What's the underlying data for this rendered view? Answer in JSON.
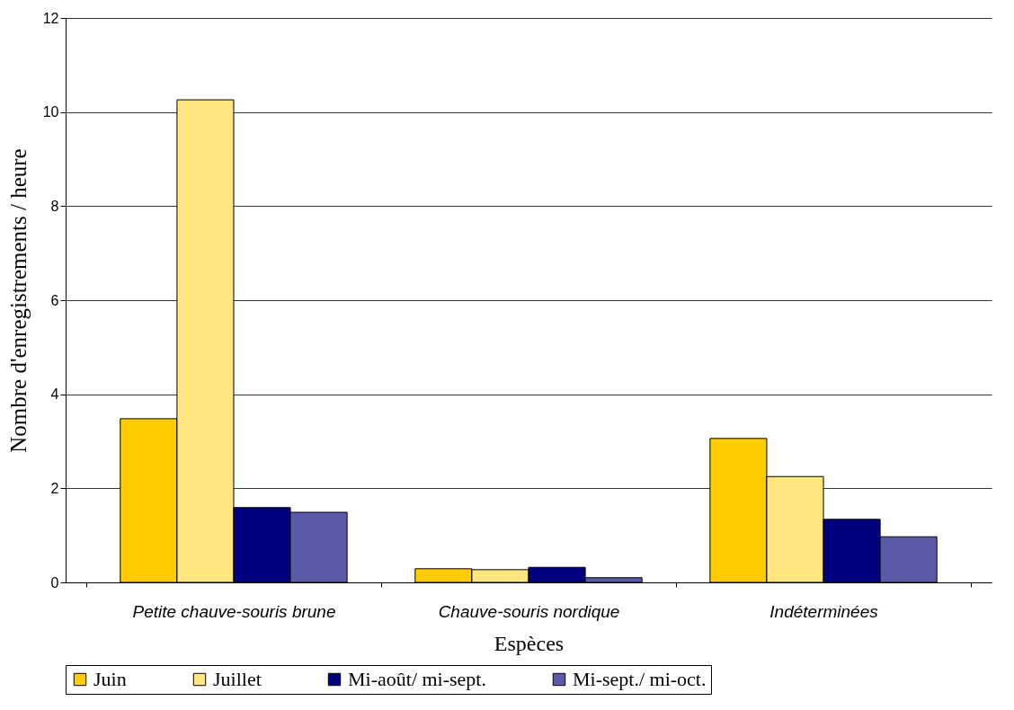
{
  "chart_data": {
    "type": "bar",
    "xlabel": "Espèces",
    "ylabel": "Nombre d'enregistrements / heure",
    "categories": [
      "Petite chauve-souris brune",
      "Chauve-souris nordique",
      "Indéterminées"
    ],
    "series": [
      {
        "name": "Juin",
        "color": "#ffcc00",
        "values": [
          3.48,
          0.29,
          3.06
        ]
      },
      {
        "name": "Juillet",
        "color": "#ffe680",
        "values": [
          10.26,
          0.27,
          2.25
        ]
      },
      {
        "name": "Mi-août/ mi-sept.",
        "color": "#000080",
        "values": [
          1.59,
          0.32,
          1.34
        ]
      },
      {
        "name": "Mi-sept./ mi-oct.",
        "color": "#5a5aa8",
        "values": [
          1.49,
          0.1,
          0.97
        ]
      }
    ],
    "ylim": [
      0,
      12
    ],
    "yticks": [
      0,
      2,
      4,
      6,
      8,
      10,
      12
    ],
    "grid": "y",
    "legend": "bottom"
  }
}
